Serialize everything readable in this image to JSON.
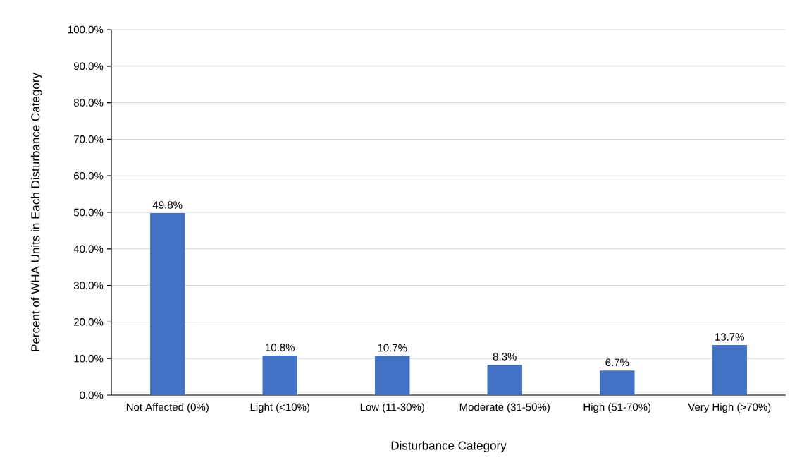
{
  "chart_data": {
    "type": "bar",
    "xlabel": "Disturbance Category",
    "ylabel": "Percent of WHA Units in Each Disturbance Category",
    "categories": [
      "Not Affected (0%)",
      "Light (<10%)",
      "Low (11-30%)",
      "Moderate (31-50%)",
      "High (51-70%)",
      "Very High (>70%)"
    ],
    "values": [
      49.8,
      10.8,
      10.7,
      8.3,
      6.7,
      13.7
    ],
    "value_labels": [
      "49.8%",
      "10.8%",
      "10.7%",
      "8.3%",
      "6.7%",
      "13.7%"
    ],
    "color": "#4472c4",
    "ylim": [
      0,
      100
    ],
    "yticks": [
      {
        "value": 0,
        "label": "0.0%"
      },
      {
        "value": 10,
        "label": "10.0%"
      },
      {
        "value": 20,
        "label": "20.0%"
      },
      {
        "value": 30,
        "label": "30.0%"
      },
      {
        "value": 40,
        "label": "40.0%"
      },
      {
        "value": 50,
        "label": "50.0%"
      },
      {
        "value": 60,
        "label": "60.0%"
      },
      {
        "value": 70,
        "label": "70.0%"
      },
      {
        "value": 80,
        "label": "80.0%"
      },
      {
        "value": 90,
        "label": "90.0%"
      },
      {
        "value": 100,
        "label": "100.0%"
      }
    ],
    "grid": "y"
  }
}
